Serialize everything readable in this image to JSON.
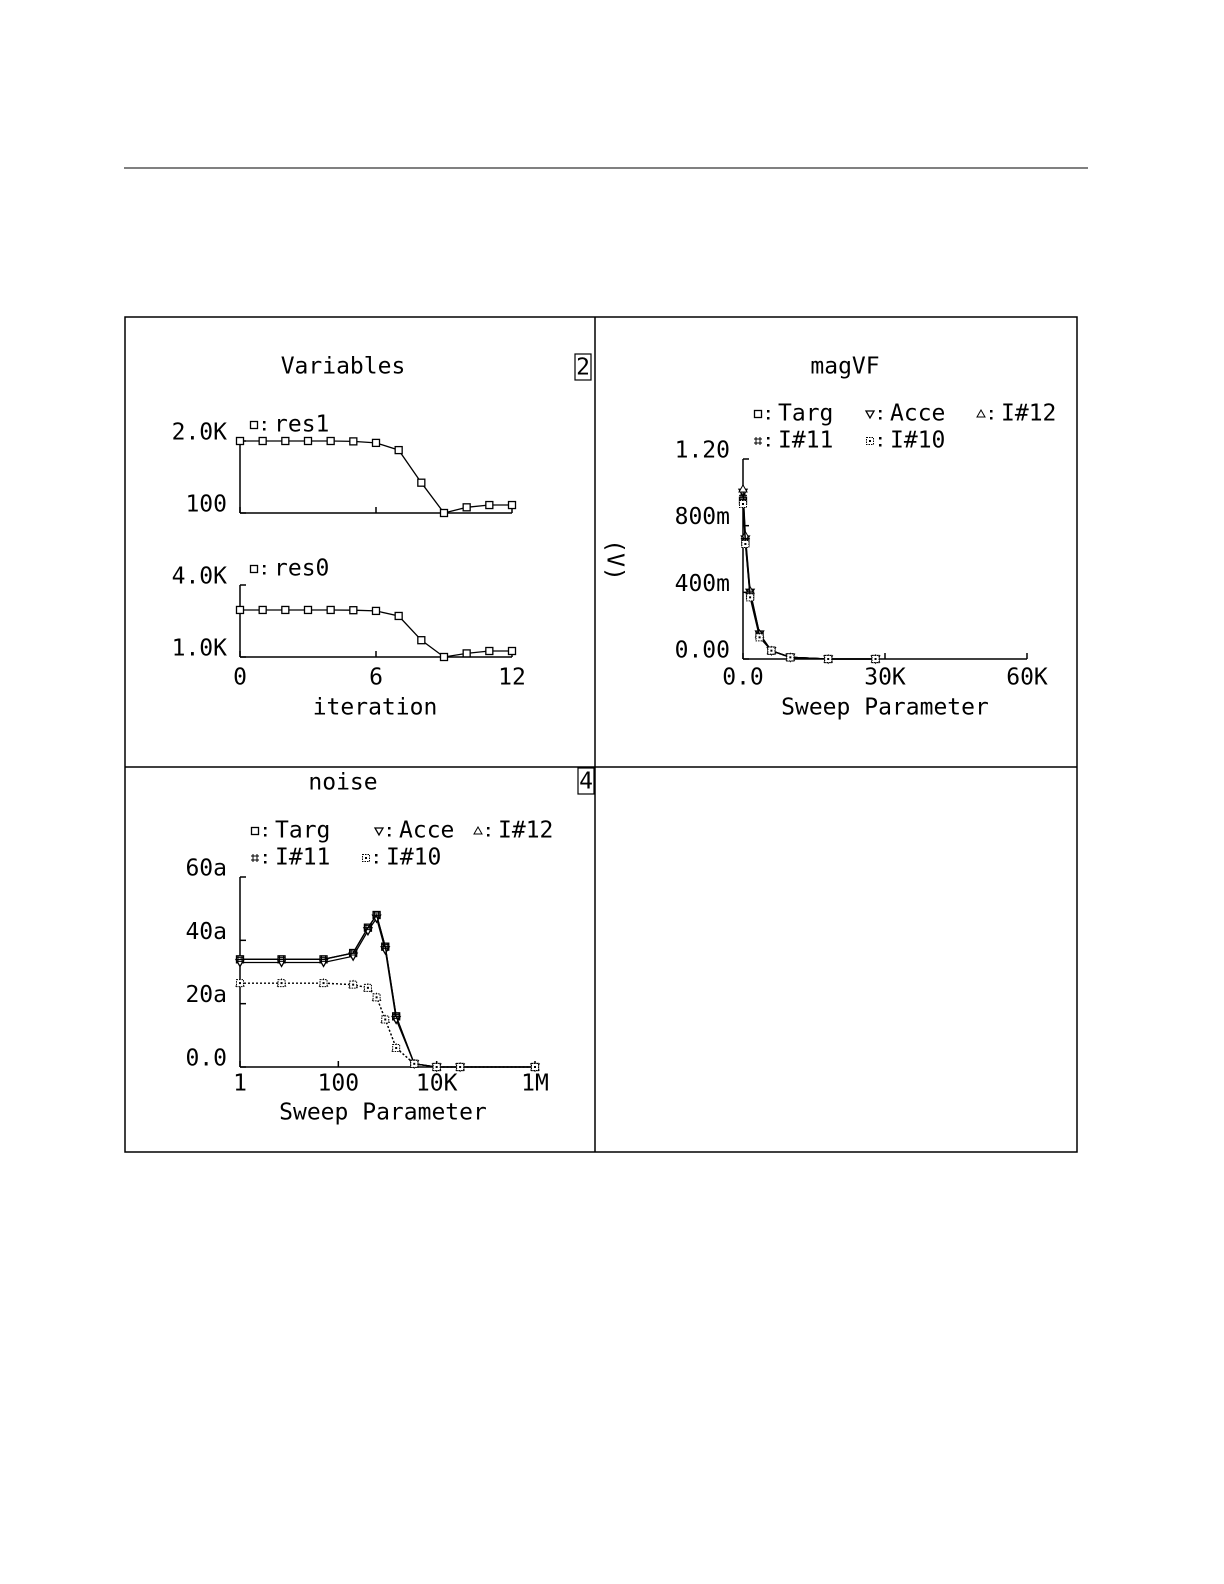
{
  "chart_data": [
    {
      "type": "line",
      "title": "Variables",
      "panel": "2",
      "xlabel": "iteration",
      "x": [
        0,
        1,
        2,
        3,
        4,
        5,
        6,
        7,
        8,
        9,
        10,
        11,
        12
      ],
      "xlim": [
        0,
        12
      ],
      "xticks": [
        0,
        6,
        12
      ],
      "subplots": [
        {
          "series": [
            {
              "name": "res1",
              "color": "#000000",
              "marker": "square",
              "line_style": "solid",
              "values": [
                2000,
                2000,
                2000,
                2000,
                2000,
                1990,
                1950,
                1760,
                900,
                100,
                250,
                310,
                310
              ]
            }
          ],
          "ylim": [
            100,
            2000
          ],
          "yticks": [
            {
              "value": 2000,
              "label": "2.0K"
            },
            100
          ]
        },
        {
          "series": [
            {
              "name": "res0",
              "color": "#000000",
              "marker": "square",
              "line_style": "solid",
              "values": [
                2960,
                2960,
                2960,
                2960,
                2960,
                2950,
                2920,
                2710,
                1700,
                1000,
                1150,
                1250,
                1250
              ]
            }
          ],
          "ylim": [
            1000,
            4000
          ],
          "yticks": [
            {
              "value": 4000,
              "label": "4.0K"
            },
            {
              "value": 1000,
              "label": "1.0K"
            }
          ]
        }
      ]
    },
    {
      "type": "line",
      "title": "magVF",
      "ylabel": "(V)",
      "xlabel": "Sweep Parameter",
      "x": [
        0,
        500,
        1500,
        3500,
        6000,
        10000,
        18000,
        28000
      ],
      "xlim": [
        0,
        60000
      ],
      "xticks": [
        {
          "value": 0,
          "label": "0.0"
        },
        {
          "value": 30000,
          "label": "30K"
        },
        {
          "value": 60000,
          "label": "60K"
        }
      ],
      "ylim": [
        0,
        1.2
      ],
      "yticks": [
        {
          "value": 0,
          "label": "0.00"
        },
        {
          "value": 0.4,
          "label": "400m"
        },
        {
          "value": 0.8,
          "label": "800m"
        },
        {
          "value": 1.2,
          "label": "1.20"
        }
      ],
      "series": [
        {
          "name": "Targ",
          "color": "#000000",
          "marker": "square",
          "line_style": "solid",
          "values": [
            0.95,
            0.7,
            0.38,
            0.14,
            0.05,
            0.01,
            0,
            0
          ]
        },
        {
          "name": "Acce",
          "color": "#000000",
          "marker": "triangle-down",
          "line_style": "solid",
          "values": [
            1.0,
            0.72,
            0.4,
            0.15,
            0.05,
            0.01,
            0,
            0
          ]
        },
        {
          "name": "I#12",
          "color": "#000000",
          "marker": "triangle-up",
          "line_style": "solid",
          "values": [
            1.02,
            0.74,
            0.41,
            0.15,
            0.05,
            0.01,
            0,
            0
          ]
        },
        {
          "name": "I#11",
          "color": "#000000",
          "marker": "hash",
          "line_style": "solid",
          "values": [
            0.97,
            0.71,
            0.39,
            0.14,
            0.05,
            0.01,
            0,
            0
          ]
        },
        {
          "name": "I#10",
          "color": "#000000",
          "marker": "dotted-square",
          "line_style": "solid",
          "values": [
            0.93,
            0.69,
            0.37,
            0.13,
            0.05,
            0.01,
            0,
            0
          ]
        }
      ]
    },
    {
      "type": "line",
      "title": "noise",
      "panel": "4",
      "xlabel": "Sweep Parameter",
      "xscale": "log",
      "x": [
        1,
        7,
        50,
        200,
        400,
        600,
        900,
        1500,
        3500,
        10000,
        30000,
        1000000
      ],
      "xlim": [
        1,
        1000000
      ],
      "xticks": [
        1,
        100,
        {
          "value": 10000,
          "label": "10K"
        },
        {
          "value": 1000000,
          "label": "1M"
        }
      ],
      "ylim": [
        0,
        60
      ],
      "yticks": [
        {
          "value": 0,
          "label": "0.0"
        },
        {
          "value": 20,
          "label": "20a"
        },
        {
          "value": 40,
          "label": "40a"
        },
        {
          "value": 60,
          "label": "60a"
        }
      ],
      "series": [
        {
          "name": "Targ",
          "color": "#000000",
          "marker": "square",
          "line_style": "solid",
          "values": [
            34,
            34,
            34,
            36,
            44,
            48,
            38,
            16,
            1,
            0,
            0,
            0
          ]
        },
        {
          "name": "Acce",
          "color": "#000000",
          "marker": "triangle-down",
          "line_style": "solid",
          "values": [
            33,
            33,
            33,
            35,
            43,
            47,
            37,
            15,
            1,
            0,
            0,
            0
          ]
        },
        {
          "name": "I#12",
          "color": "#000000",
          "marker": "triangle-up",
          "line_style": "dashed",
          "values": [
            26.5,
            26.5,
            26.5,
            26,
            25,
            22,
            15,
            6,
            1,
            0,
            0,
            0
          ]
        },
        {
          "name": "I#11",
          "color": "#000000",
          "marker": "hash",
          "line_style": "solid",
          "values": [
            34,
            34,
            34,
            36,
            44,
            48,
            38,
            16,
            1,
            0,
            0,
            0
          ]
        },
        {
          "name": "I#10",
          "color": "#000000",
          "marker": "dotted-square",
          "line_style": "dashed",
          "values": [
            26.5,
            26.5,
            26.5,
            26,
            25,
            22,
            15,
            6,
            1,
            0,
            0,
            0
          ]
        }
      ]
    }
  ]
}
